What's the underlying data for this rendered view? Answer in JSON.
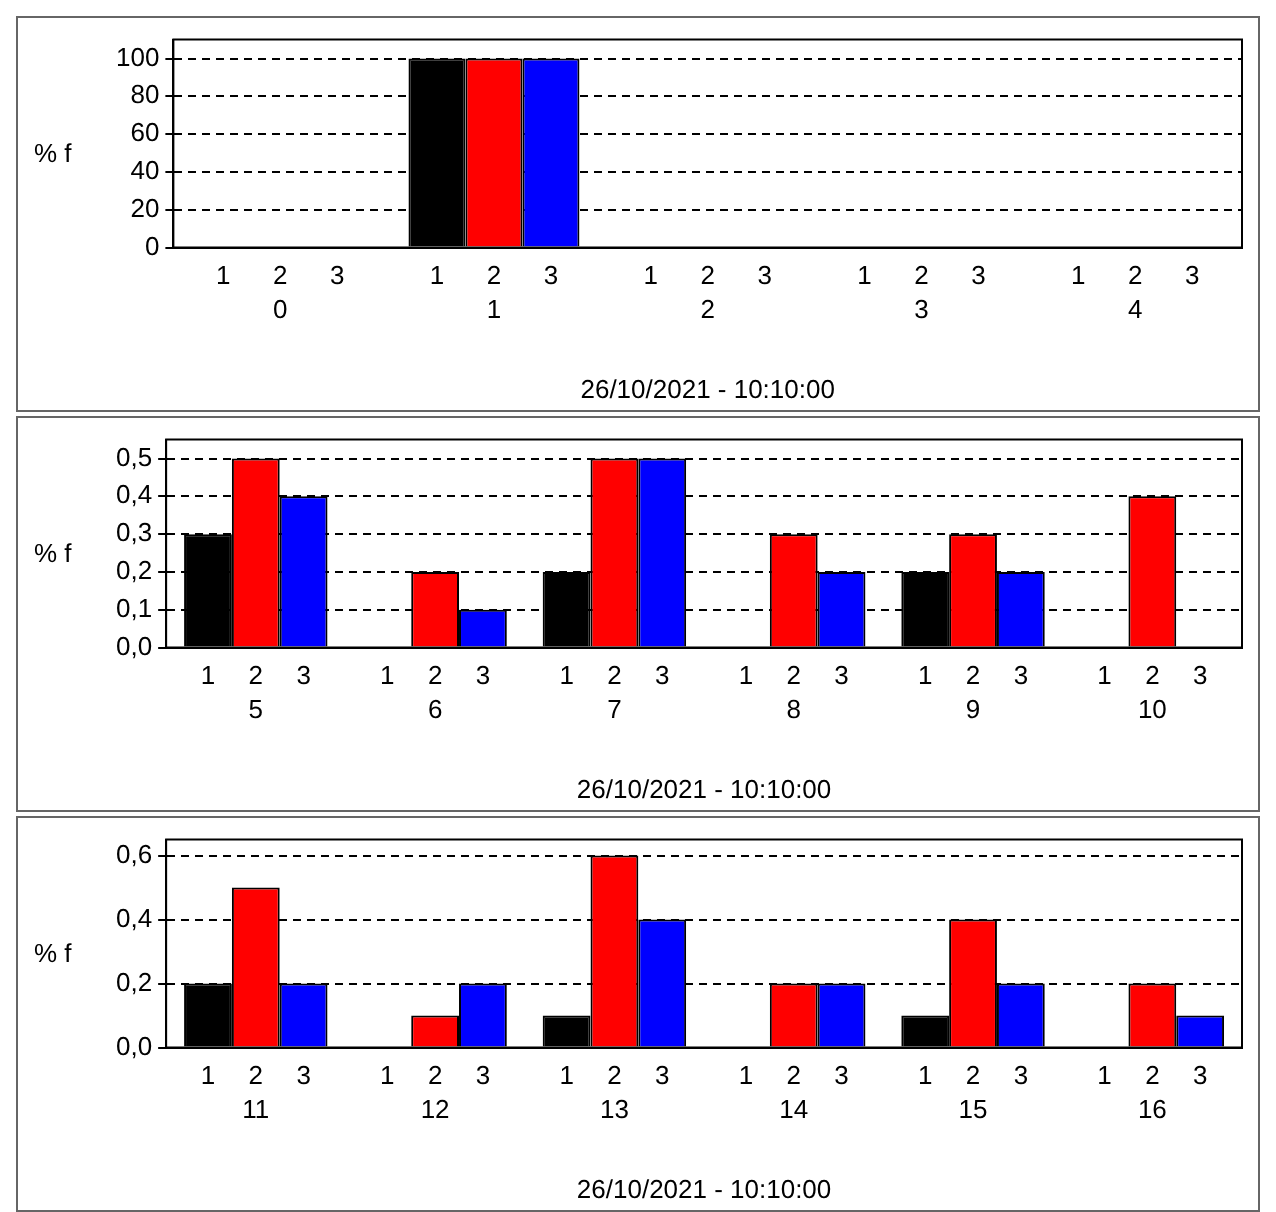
{
  "chart_data": [
    {
      "type": "bar",
      "categories": [
        "0",
        "1",
        "2",
        "3",
        "4"
      ],
      "series": [
        {
          "name": "1",
          "color": "#000000",
          "values": [
            0,
            100,
            0,
            0,
            0
          ]
        },
        {
          "name": "2",
          "color": "#ff0000",
          "values": [
            0,
            100,
            0,
            0,
            0
          ]
        },
        {
          "name": "3",
          "color": "#0000ff",
          "values": [
            0,
            100,
            0,
            0,
            0
          ]
        }
      ],
      "ylim": [
        0,
        110
      ],
      "yticks": [
        0,
        20,
        40,
        60,
        80,
        100
      ],
      "grid": "y",
      "ylabel": "% f",
      "xlabel": "26/10/2021 - 10:10:00"
    },
    {
      "type": "bar",
      "categories": [
        "5",
        "6",
        "7",
        "8",
        "9",
        "10"
      ],
      "series": [
        {
          "name": "1",
          "color": "#000000",
          "values": [
            0.3,
            0,
            0.2,
            0,
            0.2,
            0
          ]
        },
        {
          "name": "2",
          "color": "#ff0000",
          "values": [
            0.5,
            0.2,
            0.5,
            0.3,
            0.3,
            0.4
          ]
        },
        {
          "name": "3",
          "color": "#0000ff",
          "values": [
            0.4,
            0.1,
            0.5,
            0.2,
            0.2,
            0
          ]
        }
      ],
      "ylim": [
        0,
        0.55
      ],
      "yticks": [
        {
          "value": 0,
          "label": "0,0"
        },
        {
          "value": 0.1,
          "label": "0,1"
        },
        {
          "value": 0.2,
          "label": "0,2"
        },
        {
          "value": 0.3,
          "label": "0,3"
        },
        {
          "value": 0.4,
          "label": "0,4"
        },
        {
          "value": 0.5,
          "label": "0,5"
        }
      ],
      "grid": "y",
      "ylabel": "% f",
      "xlabel": "26/10/2021 - 10:10:00"
    },
    {
      "type": "bar",
      "categories": [
        "11",
        "12",
        "13",
        "14",
        "15",
        "16"
      ],
      "series": [
        {
          "name": "1",
          "color": "#000000",
          "values": [
            0.2,
            0,
            0.1,
            0,
            0.1,
            0
          ]
        },
        {
          "name": "2",
          "color": "#ff0000",
          "values": [
            0.5,
            0.1,
            0.6,
            0.2,
            0.4,
            0.2
          ]
        },
        {
          "name": "3",
          "color": "#0000ff",
          "values": [
            0.2,
            0.2,
            0.4,
            0.2,
            0.2,
            0.1
          ]
        }
      ],
      "ylim": [
        0,
        0.65
      ],
      "yticks": [
        {
          "value": 0,
          "label": "0,0"
        },
        {
          "value": 0.2,
          "label": "0,2"
        },
        {
          "value": 0.4,
          "label": "0,4"
        },
        {
          "value": 0.6,
          "label": "0,6"
        }
      ],
      "grid": "y",
      "ylabel": "% f",
      "xlabel": "26/10/2021 - 10:10:00"
    }
  ]
}
